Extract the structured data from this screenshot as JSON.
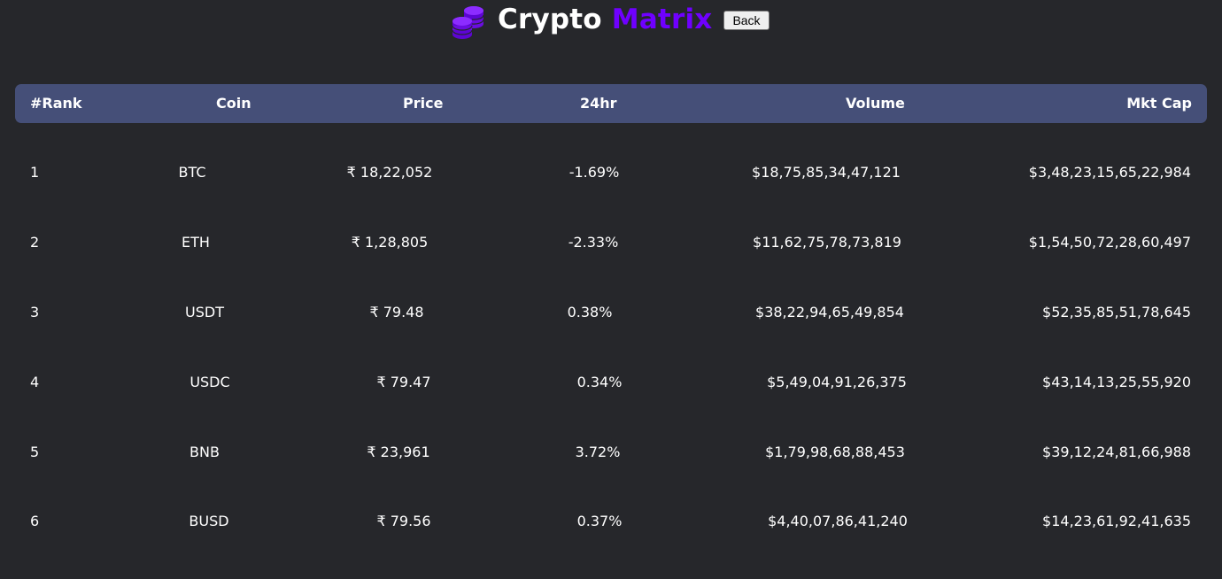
{
  "header": {
    "brand_word1": "Crypto",
    "brand_word2": "Matrix",
    "back_label": "Back",
    "logo_icon": "coins-stack-icon",
    "accent_color": "#6f00ff"
  },
  "table": {
    "columns": [
      "#Rank",
      "Coin",
      "Price",
      "24hr",
      "Volume",
      "Mkt Cap"
    ],
    "rows": [
      {
        "rank": "1",
        "coin": "BTC",
        "price": "₹ 18,22,052",
        "change": "-1.69%",
        "volume": "$18,75,85,34,47,121",
        "market_cap": "$3,48,23,15,65,22,984"
      },
      {
        "rank": "2",
        "coin": "ETH",
        "price": "₹ 1,28,805",
        "change": "-2.33%",
        "volume": "$11,62,75,78,73,819",
        "market_cap": "$1,54,50,72,28,60,497"
      },
      {
        "rank": "3",
        "coin": "USDT",
        "price": "₹ 79.48",
        "change": "0.38%",
        "volume": "$38,22,94,65,49,854",
        "market_cap": "$52,35,85,51,78,645"
      },
      {
        "rank": "4",
        "coin": "USDC",
        "price": "₹ 79.47",
        "change": "0.34%",
        "volume": "$5,49,04,91,26,375",
        "market_cap": "$43,14,13,25,55,920"
      },
      {
        "rank": "5",
        "coin": "BNB",
        "price": "₹ 23,961",
        "change": "3.72%",
        "volume": "$1,79,98,68,88,453",
        "market_cap": "$39,12,24,81,66,988"
      },
      {
        "rank": "6",
        "coin": "BUSD",
        "price": "₹ 79.56",
        "change": "0.37%",
        "volume": "$4,40,07,86,41,240",
        "market_cap": "$14,23,61,92,41,635"
      }
    ]
  }
}
